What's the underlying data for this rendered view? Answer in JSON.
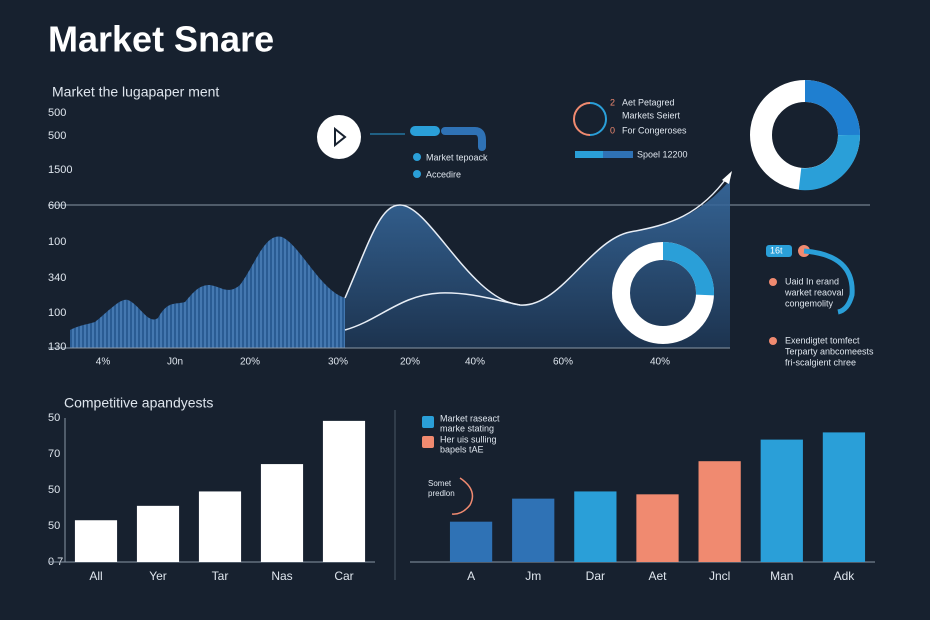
{
  "header": {
    "title": "Market Snare"
  },
  "overview": {
    "title": "Market the lugapaper ment",
    "y_labels": [
      "500",
      "500",
      "1500",
      "600",
      "100",
      "340",
      "100",
      "130"
    ],
    "x_labels": [
      "4%",
      "J0n",
      "20%",
      "30%",
      "20%",
      "40%",
      "60%",
      "40%"
    ],
    "legend": [
      "Market tepoack",
      "Accedire"
    ],
    "panel": {
      "num1": "2",
      "text1": "Aet Petagred",
      "text2": "Markets Seiert",
      "num2": "0",
      "text3": "For Congeroses",
      "bar_label": "Spoel 12200"
    },
    "side": {
      "tag": "16t",
      "note1": [
        "Uaid In erand",
        "warket reaoval",
        "congemolity"
      ],
      "note2": [
        "Exendigtet tomfect",
        "Terparty anbcomeests",
        "fri-scalgient chree"
      ]
    }
  },
  "chart_data": [
    {
      "type": "bar",
      "title": "Competitive apandyests",
      "categories": [
        "All",
        "Yer",
        "Tar",
        "Nas",
        "Car"
      ],
      "values": [
        29,
        39,
        49,
        68,
        98
      ],
      "color": "#ffffff",
      "ylim": [
        0,
        100
      ],
      "y_labels": [
        "50",
        "70",
        "50",
        "50",
        "0 7"
      ]
    },
    {
      "type": "bar",
      "categories": [
        "A",
        "Jm",
        "Dar",
        "Aet",
        "Jncl",
        "Man",
        "Adk"
      ],
      "values": [
        28,
        44,
        49,
        47,
        70,
        85,
        90
      ],
      "colors": [
        "#2f72b5",
        "#2f72b5",
        "#2a9fd8",
        "#f08a70",
        "#f08a70",
        "#2a9fd8",
        "#2a9fd8"
      ],
      "ylim": [
        0,
        100
      ],
      "legend": [
        "Market raseact",
        "marke stating",
        "Her uis sulling",
        "bapels tAE"
      ],
      "annotation": [
        "Somet",
        "predlon"
      ]
    }
  ]
}
